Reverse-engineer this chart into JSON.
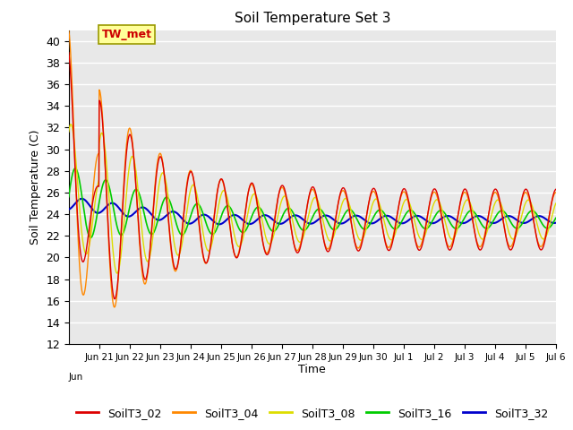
{
  "title": "Soil Temperature Set 3",
  "xlabel": "Time",
  "ylabel": "Soil Temperature (C)",
  "ylim": [
    12,
    41
  ],
  "yticks": [
    12,
    14,
    16,
    18,
    20,
    22,
    24,
    26,
    28,
    30,
    32,
    34,
    36,
    38,
    40
  ],
  "bg_color": "#e8e8e8",
  "grid_color": "#ffffff",
  "annotation_text": "TW_met",
  "annotation_bg": "#ffff99",
  "annotation_border": "#999900",
  "series_order": [
    "SoilT3_02",
    "SoilT3_04",
    "SoilT3_08",
    "SoilT3_16",
    "SoilT3_32"
  ],
  "series": {
    "SoilT3_02": {
      "color": "#dd0000",
      "lw": 1.0
    },
    "SoilT3_04": {
      "color": "#ff8800",
      "lw": 1.0
    },
    "SoilT3_08": {
      "color": "#dddd00",
      "lw": 1.0
    },
    "SoilT3_16": {
      "color": "#00cc00",
      "lw": 1.2
    },
    "SoilT3_32": {
      "color": "#0000cc",
      "lw": 1.5
    }
  },
  "tick_labels": [
    "Jun 21",
    "Jun 22",
    "Jun 23",
    "Jun 24",
    "Jun 25",
    "Jun 26",
    "Jun 27",
    "Jun 28",
    "Jun 29",
    "Jun 30",
    "Jul 1",
    "Jul 2",
    "Jul 3",
    "Jul 4",
    "Jul 5",
    "Jul 6"
  ]
}
